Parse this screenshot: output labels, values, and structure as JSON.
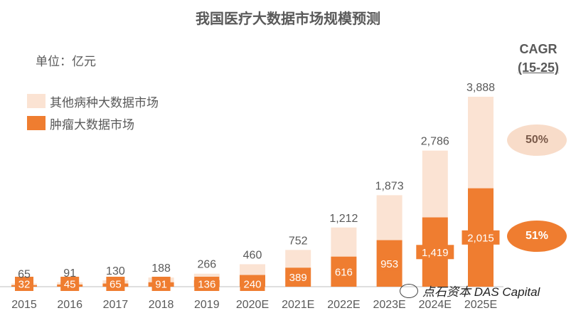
{
  "title": "我国医疗大数据市场规模预测",
  "unit_label": "单位：亿元",
  "cagr": {
    "title": "CAGR",
    "period": "(15-25)",
    "other_value": "50%",
    "tumor_value": "51%"
  },
  "watermark": "点石资本 DAS Capital",
  "colors": {
    "other": "#fbe3d3",
    "tumor": "#ef7d30",
    "text": "#595959"
  },
  "chart_data": {
    "type": "bar",
    "stacked": true,
    "categories": [
      "2015",
      "2016",
      "2017",
      "2018",
      "2019",
      "2020E",
      "2021E",
      "2022E",
      "2023E",
      "2024E",
      "2025E"
    ],
    "series": [
      {
        "name": "肿瘤大数据市场",
        "values": [
          32,
          45,
          65,
          91,
          136,
          240,
          389,
          616,
          953,
          1419,
          2015
        ],
        "labels": [
          "32",
          "45",
          "65",
          "91",
          "136",
          "240",
          "389",
          "616",
          "953",
          "1,419",
          "2,015"
        ]
      },
      {
        "name": "其他病种大数据市场",
        "values": [
          33,
          46,
          65,
          97,
          130,
          220,
          363,
          596,
          920,
          1367,
          1873
        ]
      }
    ],
    "totals": [
      65,
      91,
      130,
      188,
      266,
      460,
      752,
      1212,
      1873,
      2786,
      3888
    ],
    "total_labels": [
      "65",
      "91",
      "130",
      "188",
      "266",
      "460",
      "752",
      "1,212",
      "1,873",
      "2,786",
      "3,888"
    ],
    "ylim": [
      0,
      3888
    ],
    "legend_position": "top-left",
    "grid": false
  }
}
